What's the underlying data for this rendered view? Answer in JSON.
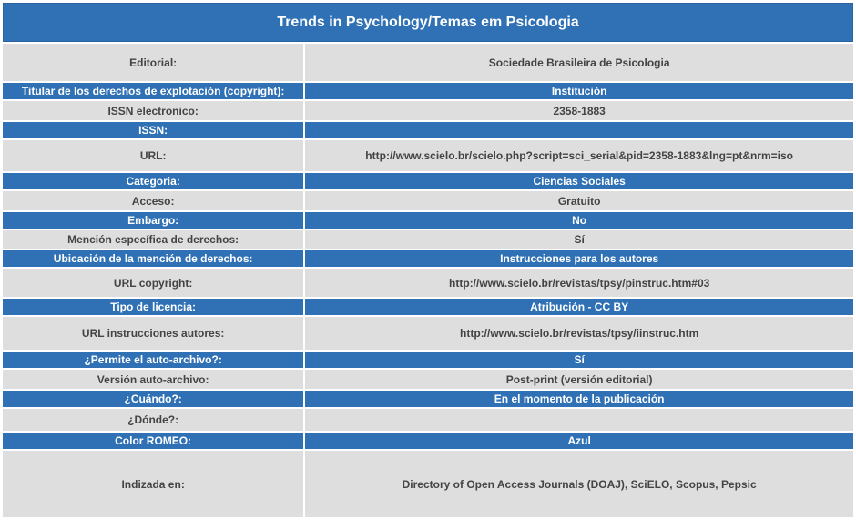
{
  "title": "Trends in Psychology/Temas em Psicologia",
  "rows": [
    {
      "label": "Editorial:",
      "value": "Sociedade Brasileira de Psicologia"
    },
    {
      "label": "Titular de los derechos de explotación (copyright):",
      "value": "Institución"
    },
    {
      "label": "ISSN electronico:",
      "value": "2358-1883"
    },
    {
      "label": "ISSN:",
      "value": ""
    },
    {
      "label": "URL:",
      "value": "http://www.scielo.br/scielo.php?script=sci_serial&pid=2358-1883&lng=pt&nrm=iso"
    },
    {
      "label": "Categoria:",
      "value": "Ciencias Sociales"
    },
    {
      "label": "Acceso:",
      "value": "Gratuito"
    },
    {
      "label": "Embargo:",
      "value": "No"
    },
    {
      "label": "Mención específica de derechos:",
      "value": "Sí"
    },
    {
      "label": "Ubicación de la mención de derechos:",
      "value": "Instrucciones para los autores"
    },
    {
      "label": "URL copyright:",
      "value": "http://www.scielo.br/revistas/tpsy/pinstruc.htm#03"
    },
    {
      "label": "Tipo de licencia:",
      "value": "Atribución - CC BY"
    },
    {
      "label": "URL instrucciones autores:",
      "value": "http://www.scielo.br/revistas/tpsy/iinstruc.htm"
    },
    {
      "label": "¿Permite el auto-archivo?:",
      "value": "Sí"
    },
    {
      "label": "Versión auto-archivo:",
      "value": "Post-print (versión editorial)"
    },
    {
      "label": "¿Cuándo?:",
      "value": "En el momento de la publicación"
    },
    {
      "label": "¿Dónde?:",
      "value": ""
    },
    {
      "label": "Color ROMEO:",
      "value": "Azul"
    },
    {
      "label": "Indizada en:",
      "value": "Directory of Open Access Journals (DOAJ), SciELO, Scopus, Pepsic"
    }
  ],
  "colors": {
    "header_blue": "#2f71b4",
    "row_gray": "#dedede",
    "text_dark": "#444444",
    "text_light": "#ffffff"
  }
}
